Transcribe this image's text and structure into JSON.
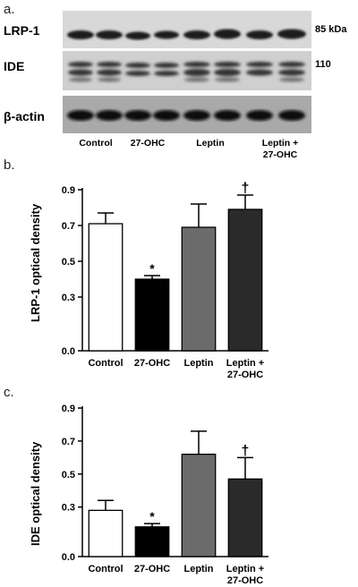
{
  "panels": {
    "a": "a.",
    "b": "b.",
    "c": "c."
  },
  "western_blot": {
    "rows": [
      {
        "label": "LRP-1",
        "marker": "85 kDa"
      },
      {
        "label": "IDE",
        "marker": "110"
      },
      {
        "label": "β-actin",
        "marker": ""
      }
    ],
    "lanes": [
      {
        "label_line1": "Control",
        "label_line2": ""
      },
      {
        "label_line1": "27-OHC",
        "label_line2": ""
      },
      {
        "label_line1": "Leptin",
        "label_line2": ""
      },
      {
        "label_line1": "Leptin +",
        "label_line2": "27-OHC"
      }
    ]
  },
  "chart_data": [
    {
      "type": "bar",
      "panel": "b",
      "ylabel": "LRP-1 optical density",
      "categories": [
        "Control",
        "27-OHC",
        "Leptin",
        [
          "Leptin +",
          "27-OHC"
        ]
      ],
      "values": [
        0.71,
        0.4,
        0.69,
        0.79
      ],
      "errors": [
        0.06,
        0.02,
        0.13,
        0.08
      ],
      "annotations": [
        "",
        "*",
        "",
        "†"
      ],
      "colors": [
        "#ffffff",
        "#000000",
        "#6b6b6b",
        "#2a2a2a"
      ],
      "yticks": [
        "0.0",
        "0.3",
        "0.5",
        "0.7",
        "0.9"
      ],
      "ylim": [
        0.0,
        0.9
      ]
    },
    {
      "type": "bar",
      "panel": "c",
      "ylabel": "IDE optical density",
      "categories": [
        "Control",
        "27-OHC",
        "Leptin",
        [
          "Leptin +",
          "27-OHC"
        ]
      ],
      "values": [
        0.28,
        0.18,
        0.62,
        0.47
      ],
      "errors": [
        0.06,
        0.02,
        0.14,
        0.13
      ],
      "annotations": [
        "",
        "*",
        "",
        "†"
      ],
      "colors": [
        "#ffffff",
        "#000000",
        "#6b6b6b",
        "#2a2a2a"
      ],
      "yticks": [
        "0.0",
        "0.3",
        "0.5",
        "0.7",
        "0.9"
      ],
      "ylim": [
        0.0,
        0.9
      ]
    }
  ]
}
